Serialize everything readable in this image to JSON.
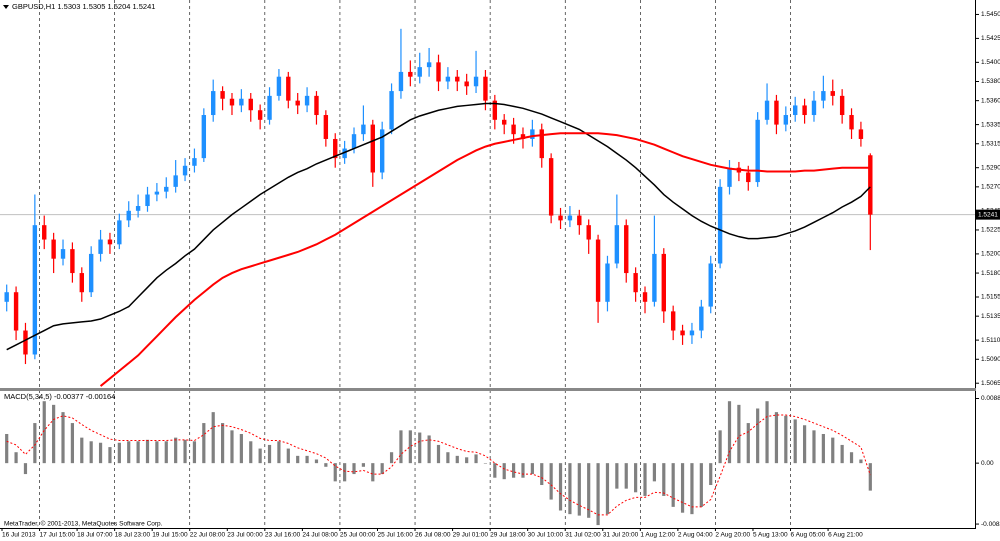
{
  "chart_data": [
    {
      "type": "candlestick",
      "title": "GBPUSD,H1  1.5303 1.5305 1.5204 1.5241",
      "categories": [
        "16 Jul 2013",
        null,
        null,
        null,
        "17 Jul 15:00",
        null,
        null,
        null,
        "18 Jul 07:00",
        null,
        null,
        null,
        "18 Jul 23:00",
        null,
        null,
        null,
        "19 Jul 15:00",
        null,
        null,
        null,
        "22 Jul 08:00",
        null,
        null,
        null,
        "23 Jul 00:00",
        null,
        null,
        null,
        "23 Jul 16:00",
        null,
        null,
        null,
        "24 Jul 08:00",
        null,
        null,
        null,
        "25 Jul 00:00",
        null,
        null,
        null,
        "25 Jul 16:00",
        null,
        null,
        null,
        "26 Jul 08:00",
        null,
        null,
        null,
        "29 Jul 01:00",
        null,
        null,
        null,
        "29 Jul 18:00",
        null,
        null,
        null,
        "30 Jul 10:00",
        null,
        null,
        null,
        "31 Jul 02:00",
        null,
        null,
        null,
        "31 Jul 20:00",
        null,
        null,
        null,
        "1 Aug 12:00",
        null,
        null,
        null,
        "2 Aug 04:00",
        null,
        null,
        null,
        "2 Aug 20:00",
        null,
        null,
        null,
        "5 Aug 13:00",
        null,
        null,
        null,
        "6 Aug 05:00",
        null,
        null,
        null,
        "6 Aug 21:00",
        null,
        null,
        null,
        null
      ],
      "open": [
        1.515,
        1.516,
        1.512,
        1.5095,
        1.523,
        1.5215,
        1.5195,
        1.5205,
        1.518,
        1.516,
        1.52,
        1.5215,
        1.521,
        1.5235,
        1.5245,
        1.525,
        1.5262,
        1.5265,
        1.527,
        1.5282,
        1.5292,
        1.53,
        1.5345,
        1.537,
        1.5362,
        1.5355,
        1.5362,
        1.535,
        1.534,
        1.5365,
        1.5385,
        1.536,
        1.5355,
        1.5365,
        1.5345,
        1.532,
        1.53,
        1.531,
        1.5325,
        1.5335,
        1.5285,
        1.533,
        1.537,
        1.539,
        1.5385,
        1.5395,
        1.54,
        1.538,
        1.5385,
        1.538,
        1.5375,
        1.5385,
        1.536,
        1.534,
        1.5335,
        1.5325,
        1.532,
        1.533,
        1.53,
        1.524,
        1.5235,
        1.524,
        1.523,
        1.5215,
        1.515,
        1.519,
        1.523,
        1.518,
        1.516,
        1.515,
        1.52,
        1.514,
        1.512,
        1.5115,
        1.512,
        1.5145,
        1.519,
        1.527,
        1.529,
        1.5285,
        1.5275,
        1.534,
        1.536,
        1.5335,
        1.5345,
        1.5355,
        1.5345,
        1.536,
        1.537,
        1.5365,
        1.5345,
        1.533,
        1.5303
      ],
      "high": [
        1.5168,
        1.5166,
        1.5128,
        1.5262,
        1.524,
        1.5222,
        1.5215,
        1.5212,
        1.5186,
        1.5208,
        1.5225,
        1.5222,
        1.5242,
        1.5255,
        1.5262,
        1.527,
        1.5274,
        1.528,
        1.5298,
        1.53,
        1.531,
        1.5352,
        1.5382,
        1.5375,
        1.5368,
        1.5372,
        1.5368,
        1.5356,
        1.5374,
        1.5393,
        1.539,
        1.5368,
        1.5374,
        1.537,
        1.535,
        1.5326,
        1.5318,
        1.5332,
        1.5355,
        1.534,
        1.5338,
        1.5378,
        1.5435,
        1.5402,
        1.541,
        1.5415,
        1.5408,
        1.5395,
        1.5392,
        1.5388,
        1.5412,
        1.5392,
        1.5366,
        1.5346,
        1.5342,
        1.5332,
        1.534,
        1.5336,
        1.5305,
        1.5248,
        1.525,
        1.5246,
        1.5236,
        1.522,
        1.5198,
        1.5262,
        1.5236,
        1.5186,
        1.5166,
        1.524,
        1.5206,
        1.5146,
        1.5126,
        1.5128,
        1.5152,
        1.5198,
        1.5278,
        1.5298,
        1.5296,
        1.5292,
        1.5348,
        1.5378,
        1.5366,
        1.5354,
        1.5364,
        1.5362,
        1.537,
        1.5386,
        1.5382,
        1.5372,
        1.5352,
        1.5338,
        1.5305
      ],
      "low": [
        1.514,
        1.511,
        1.5085,
        1.509,
        1.5205,
        1.518,
        1.5188,
        1.517,
        1.515,
        1.5155,
        1.5192,
        1.52,
        1.5205,
        1.5228,
        1.5238,
        1.5244,
        1.5255,
        1.5258,
        1.5264,
        1.5276,
        1.5285,
        1.5296,
        1.5338,
        1.535,
        1.5345,
        1.5348,
        1.5338,
        1.533,
        1.5335,
        1.536,
        1.5352,
        1.5346,
        1.5348,
        1.5335,
        1.5312,
        1.529,
        1.5294,
        1.5305,
        1.5318,
        1.527,
        1.5278,
        1.5325,
        1.5362,
        1.5375,
        1.5378,
        1.5385,
        1.537,
        1.5372,
        1.537,
        1.5366,
        1.5368,
        1.535,
        1.533,
        1.5325,
        1.5315,
        1.531,
        1.5312,
        1.529,
        1.5232,
        1.5226,
        1.5228,
        1.522,
        1.52,
        1.5128,
        1.514,
        1.5185,
        1.517,
        1.515,
        1.5138,
        1.5145,
        1.5128,
        1.511,
        1.5105,
        1.5106,
        1.5112,
        1.5138,
        1.5185,
        1.5262,
        1.5276,
        1.5266,
        1.527,
        1.5335,
        1.5325,
        1.5328,
        1.5338,
        1.5336,
        1.5338,
        1.5352,
        1.5355,
        1.5336,
        1.532,
        1.5312,
        1.5204
      ],
      "close": [
        1.516,
        1.512,
        1.5095,
        1.523,
        1.5215,
        1.5195,
        1.5205,
        1.518,
        1.516,
        1.52,
        1.5215,
        1.521,
        1.5235,
        1.5245,
        1.525,
        1.5262,
        1.5265,
        1.527,
        1.5282,
        1.5292,
        1.53,
        1.5345,
        1.537,
        1.5362,
        1.5355,
        1.5362,
        1.535,
        1.534,
        1.5365,
        1.5385,
        1.536,
        1.5355,
        1.5365,
        1.5345,
        1.532,
        1.53,
        1.531,
        1.5325,
        1.5335,
        1.5285,
        1.533,
        1.537,
        1.539,
        1.5385,
        1.5395,
        1.54,
        1.538,
        1.5385,
        1.538,
        1.5375,
        1.5385,
        1.536,
        1.534,
        1.5335,
        1.5325,
        1.532,
        1.533,
        1.53,
        1.524,
        1.5235,
        1.524,
        1.523,
        1.5215,
        1.515,
        1.519,
        1.523,
        1.518,
        1.516,
        1.515,
        1.52,
        1.514,
        1.512,
        1.5115,
        1.512,
        1.5145,
        1.519,
        1.527,
        1.529,
        1.5285,
        1.5275,
        1.534,
        1.536,
        1.5335,
        1.5345,
        1.5355,
        1.5345,
        1.536,
        1.537,
        1.5365,
        1.5345,
        1.533,
        1.532,
        1.5241
      ],
      "up_color": "#1e90ff",
      "down_color": "#ff0000",
      "series": [
        {
          "color": "#000000",
          "values": [
            1.51,
            1.5105,
            1.511,
            1.5115,
            1.512,
            1.5125,
            1.5127,
            1.5128,
            1.5129,
            1.513,
            1.5132,
            1.5136,
            1.514,
            1.5145,
            1.5155,
            1.5165,
            1.5175,
            1.5183,
            1.519,
            1.5198,
            1.5205,
            1.5215,
            1.5225,
            1.5233,
            1.5241,
            1.5248,
            1.5255,
            1.5262,
            1.5268,
            1.5274,
            1.528,
            1.5285,
            1.5289,
            1.5294,
            1.5298,
            1.5302,
            1.5306,
            1.531,
            1.5314,
            1.5318,
            1.5322,
            1.5328,
            1.5334,
            1.534,
            1.5344,
            1.5347,
            1.535,
            1.5352,
            1.5354,
            1.5355,
            1.5356,
            1.5357,
            1.5357,
            1.5356,
            1.5354,
            1.5352,
            1.5349,
            1.5346,
            1.5342,
            1.5338,
            1.5334,
            1.533,
            1.5324,
            1.5318,
            1.5312,
            1.5305,
            1.5298,
            1.529,
            1.5281,
            1.5272,
            1.5262,
            1.5254,
            1.5247,
            1.524,
            1.5234,
            1.5229,
            1.5225,
            1.5221,
            1.5218,
            1.5216,
            1.5216,
            1.5217,
            1.5218,
            1.5221,
            1.5224,
            1.5228,
            1.5233,
            1.5238,
            1.5243,
            1.5249,
            1.5254,
            1.526,
            1.527
          ]
        },
        {
          "color": "#ff0000",
          "values": [
            null,
            null,
            null,
            null,
            null,
            null,
            null,
            null,
            null,
            null,
            1.5062,
            1.507,
            1.5078,
            1.5086,
            1.5094,
            1.5104,
            1.5114,
            1.5124,
            1.5134,
            1.5143,
            1.5152,
            1.516,
            1.5168,
            1.5175,
            1.518,
            1.5184,
            1.5187,
            1.519,
            1.5193,
            1.5196,
            1.5199,
            1.5202,
            1.5206,
            1.521,
            1.5215,
            1.522,
            1.5226,
            1.5232,
            1.5238,
            1.5244,
            1.525,
            1.5256,
            1.5262,
            1.5268,
            1.5274,
            1.528,
            1.5286,
            1.5292,
            1.5298,
            1.5303,
            1.5308,
            1.5312,
            1.5315,
            1.5317,
            1.5319,
            1.5321,
            1.5323,
            1.5324,
            1.5325,
            1.5326,
            1.5326,
            1.5326,
            1.5326,
            1.5326,
            1.5325,
            1.5324,
            1.5322,
            1.532,
            1.5317,
            1.5314,
            1.531,
            1.5306,
            1.5302,
            1.5299,
            1.5296,
            1.5293,
            1.5291,
            1.5289,
            1.5288,
            1.5287,
            1.5287,
            1.5286,
            1.5286,
            1.5286,
            1.5286,
            1.5287,
            1.5287,
            1.5288,
            1.5289,
            1.529,
            1.529,
            1.529,
            1.529
          ]
        }
      ],
      "current_price": 1.5241,
      "ylim": [
        1.506,
        1.5463
      ],
      "yticks": [
        {
          "value": 1.545,
          "label": "1.5450"
        },
        {
          "value": 1.5425,
          "label": "1.5425"
        },
        {
          "value": 1.54,
          "label": "1.5400"
        },
        {
          "value": 1.538,
          "label": "1.5380"
        },
        {
          "value": 1.536,
          "label": "1.5360"
        },
        {
          "value": 1.5335,
          "label": "1.5335"
        },
        {
          "value": 1.5315,
          "label": "1.5315"
        },
        {
          "value": 1.529,
          "label": "1.5290"
        },
        {
          "value": 1.527,
          "label": "1.5270"
        },
        {
          "value": 1.5245,
          "label": "1.5245"
        },
        {
          "value": 1.5225,
          "label": "1.5225"
        },
        {
          "value": 1.52,
          "label": "1.5200"
        },
        {
          "value": 1.518,
          "label": "1.5180"
        },
        {
          "value": 1.5155,
          "label": "1.5155"
        },
        {
          "value": 1.5135,
          "label": "1.5135"
        },
        {
          "value": 1.511,
          "label": "1.5110"
        },
        {
          "value": 1.509,
          "label": "1.5090"
        },
        {
          "value": 1.5065,
          "label": "1.5065"
        }
      ]
    },
    {
      "type": "macd",
      "title": "MACD(5,34,5) -0.00377 -0.00164",
      "color": "#808080",
      "values": [
        0.004,
        0.0015,
        -0.0015,
        0.0055,
        0.0085,
        0.008,
        0.007,
        0.0055,
        0.0035,
        0.003,
        0.0028,
        0.0022,
        0.0028,
        0.003,
        0.003,
        0.0032,
        0.003,
        0.003,
        0.0035,
        0.0032,
        0.003,
        0.0055,
        0.007,
        0.0055,
        0.0045,
        0.004,
        0.003,
        0.002,
        0.0025,
        0.003,
        0.002,
        0.001,
        0.001,
        0.0005,
        -0.0005,
        -0.0025,
        -0.0025,
        -0.0015,
        -0.0005,
        -0.0025,
        -0.0015,
        0.0015,
        0.0045,
        0.0045,
        0.0042,
        0.0038,
        0.0025,
        0.0015,
        0.001,
        0.0008,
        0.0012,
        0.0,
        -0.002,
        -0.0022,
        -0.002,
        -0.002,
        -0.0015,
        -0.003,
        -0.005,
        -0.0065,
        -0.007,
        -0.0072,
        -0.0075,
        -0.0085,
        -0.007,
        -0.0035,
        -0.0035,
        -0.004,
        -0.0045,
        -0.0025,
        -0.0045,
        -0.006,
        -0.0068,
        -0.007,
        -0.006,
        -0.003,
        0.0045,
        0.0085,
        0.008,
        0.0055,
        0.0075,
        0.0085,
        0.007,
        0.0065,
        0.006,
        0.0052,
        0.0045,
        0.004,
        0.0035,
        0.0025,
        0.0015,
        0.0005,
        -0.00377
      ],
      "series": [
        {
          "color": "#ff0000",
          "values": [
            0.003,
            0.0025,
            0.0012,
            0.0025,
            0.0045,
            0.006,
            0.0065,
            0.0062,
            0.0053,
            0.0045,
            0.0039,
            0.0033,
            0.0031,
            0.0031,
            0.0031,
            0.0031,
            0.0031,
            0.0031,
            0.0032,
            0.0032,
            0.0031,
            0.0039,
            0.005,
            0.0052,
            0.005,
            0.0046,
            0.0041,
            0.0034,
            0.0031,
            0.0031,
            0.0027,
            0.0021,
            0.0017,
            0.0013,
            0.0007,
            -0.0004,
            -0.0011,
            -0.0012,
            -0.001,
            -0.0015,
            -0.0015,
            -0.0005,
            0.0012,
            0.0023,
            0.003,
            0.0032,
            0.003,
            0.0025,
            0.002,
            0.0016,
            0.0015,
            0.001,
            0.0,
            -0.0008,
            -0.0012,
            -0.0015,
            -0.0015,
            -0.002,
            -0.003,
            -0.0042,
            -0.0051,
            -0.0058,
            -0.0064,
            -0.0071,
            -0.0071,
            -0.0059,
            -0.0051,
            -0.0047,
            -0.0047,
            -0.004,
            -0.0041,
            -0.0048,
            -0.0054,
            -0.006,
            -0.006,
            -0.005,
            -0.0018,
            0.0016,
            0.0037,
            0.0043,
            0.0054,
            0.0064,
            0.0066,
            0.0066,
            0.0064,
            0.006,
            0.0055,
            0.005,
            0.0045,
            0.0038,
            0.003,
            0.0022,
            -0.00164
          ]
        }
      ],
      "ylim": [
        -0.0089,
        0.0099
      ],
      "yticks": [
        0.00887,
        {
          "value": 0,
          "label": "0.00"
        },
        -0.00836
      ]
    }
  ],
  "footer": "MetaTrader, © 2001-2013, MetaQuotes Software Corp."
}
